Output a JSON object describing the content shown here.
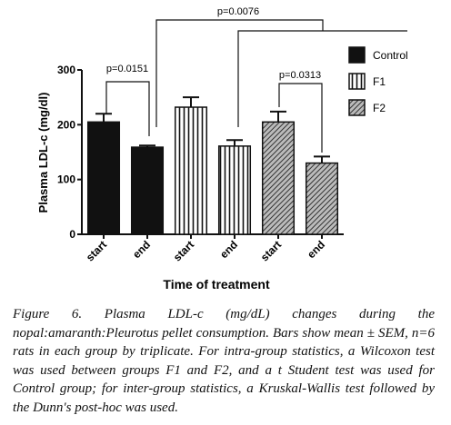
{
  "chart_data": {
    "type": "bar",
    "ylabel": "Plasma LDL-c (mg/dl)",
    "xlabel": "Time of treatment",
    "categories": [
      "start",
      "end",
      "start",
      "end",
      "start",
      "end"
    ],
    "series": [
      {
        "name": "Control",
        "color": "#111111",
        "hatch": "none",
        "values": [
          205,
          159,
          null,
          null,
          null,
          null
        ],
        "errors": [
          15,
          3,
          null,
          null,
          null,
          null
        ]
      },
      {
        "name": "F1",
        "color": "#ffffff",
        "hatch": "vertical",
        "values": [
          null,
          null,
          232,
          161,
          null,
          null
        ],
        "errors": [
          null,
          null,
          18,
          11,
          null,
          null
        ]
      },
      {
        "name": "F2",
        "color": "#555555",
        "hatch": "diagonal",
        "values": [
          null,
          null,
          null,
          null,
          205,
          130
        ],
        "errors": [
          null,
          null,
          null,
          null,
          19,
          12
        ]
      }
    ],
    "ylim": [
      0,
      300
    ],
    "yticks": [
      0,
      100,
      200,
      300
    ],
    "annotations": [
      "p=0.0151",
      "p=0.0076",
      "p=0.0313"
    ]
  },
  "caption": "Figure 6. Plasma LDL-c (mg/dL) changes during the nopal:amaranth:Pleurotus pellet consumption. Bars show mean ± SEM, n=6 rats in each group by triplicate. For intra-group statistics, a Wilcoxon test was used between groups F1 and F2, and a t Student test was used for Control group; for inter-group statistics, a Kruskal-Wallis test followed by the Dunn's post-hoc was used."
}
